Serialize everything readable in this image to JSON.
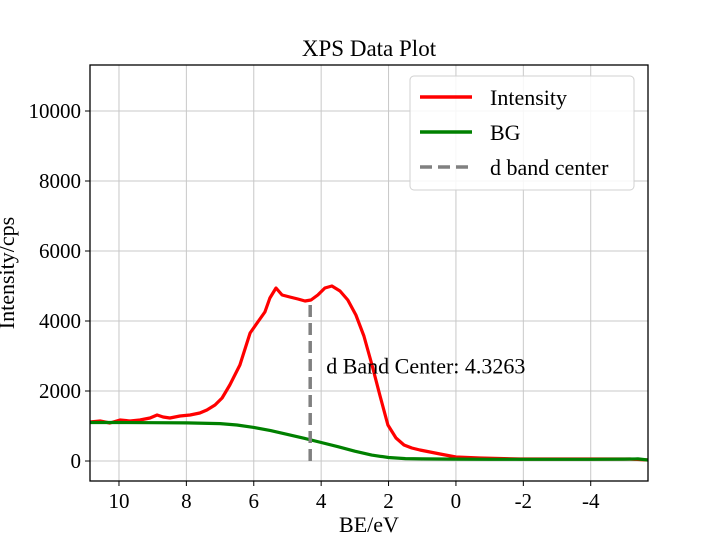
{
  "chart_data": {
    "type": "line",
    "title": "XPS Data Plot",
    "xlabel": "BE/eV",
    "ylabel": "Intensity/cps",
    "xlim": [
      10.86,
      -5.7
    ],
    "ylim": [
      -571,
      11314
    ],
    "x_inverted": true,
    "grid": true,
    "legend_position": "upper right",
    "xticks": [
      10,
      8,
      6,
      4,
      2,
      0,
      -2,
      -4
    ],
    "xtick_labels": [
      "10",
      "8",
      "6",
      "4",
      "2",
      "0",
      "-2",
      "-4"
    ],
    "yticks": [
      0,
      2000,
      4000,
      6000,
      8000,
      10000
    ],
    "ytick_labels": [
      "0",
      "2000",
      "4000",
      "6000",
      "8000",
      "10000"
    ],
    "series": [
      {
        "name": "Intensity",
        "color": "#ff0000",
        "style": "solid",
        "x": [
          10.86,
          10.56,
          10.27,
          9.97,
          9.67,
          9.38,
          9.08,
          8.87,
          8.69,
          8.49,
          8.19,
          7.89,
          7.6,
          7.39,
          7.15,
          6.94,
          6.71,
          6.41,
          6.11,
          5.88,
          5.67,
          5.52,
          5.34,
          5.16,
          4.93,
          4.69,
          4.48,
          4.3,
          4.1,
          3.89,
          3.68,
          3.44,
          3.21,
          2.97,
          2.73,
          2.49,
          2.26,
          2.02,
          1.78,
          1.54,
          1.31,
          1.07,
          0.77,
          0.47,
          0.0,
          -0.71,
          -1.9,
          -3.08,
          -4.27,
          -5.16,
          -5.7
        ],
        "values": [
          1114,
          1143,
          1086,
          1171,
          1143,
          1171,
          1229,
          1314,
          1257,
          1229,
          1286,
          1314,
          1371,
          1457,
          1600,
          1800,
          2171,
          2743,
          3657,
          3971,
          4257,
          4657,
          4943,
          4743,
          4686,
          4629,
          4571,
          4600,
          4743,
          4943,
          5000,
          4857,
          4600,
          4171,
          3571,
          2743,
          1886,
          1029,
          657,
          457,
          371,
          314,
          257,
          200,
          114,
          86,
          57,
          57,
          57,
          57,
          29
        ]
      },
      {
        "name": "BG",
        "color": "#008000",
        "style": "solid",
        "x": [
          10.86,
          10.0,
          9.0,
          8.0,
          7.0,
          6.5,
          6.0,
          5.5,
          5.0,
          4.5,
          4.0,
          3.5,
          3.0,
          2.5,
          2.0,
          1.5,
          1.0,
          0.0,
          -1.0,
          -2.0,
          -3.0,
          -4.0,
          -5.0,
          -5.4,
          -5.7
        ],
        "values": [
          1100,
          1100,
          1095,
          1090,
          1070,
          1030,
          960,
          870,
          760,
          650,
          530,
          410,
          280,
          170,
          100,
          70,
          60,
          55,
          50,
          50,
          50,
          50,
          55,
          60,
          30
        ]
      },
      {
        "name": "d band center",
        "color": "#808080",
        "style": "dashed",
        "x": [
          4.3263,
          4.3263
        ],
        "values": [
          0,
          4600
        ]
      }
    ],
    "annotations": [
      {
        "text": "d Band Center: 4.3263",
        "x": 3.85,
        "y": 2500
      }
    ]
  },
  "labels": {
    "title": "XPS Data Plot",
    "xlabel": "BE/eV",
    "ylabel": "Intensity/cps",
    "annotation": "d Band Center: 4.3263",
    "legend": [
      "Intensity",
      "BG",
      "d band center"
    ]
  }
}
